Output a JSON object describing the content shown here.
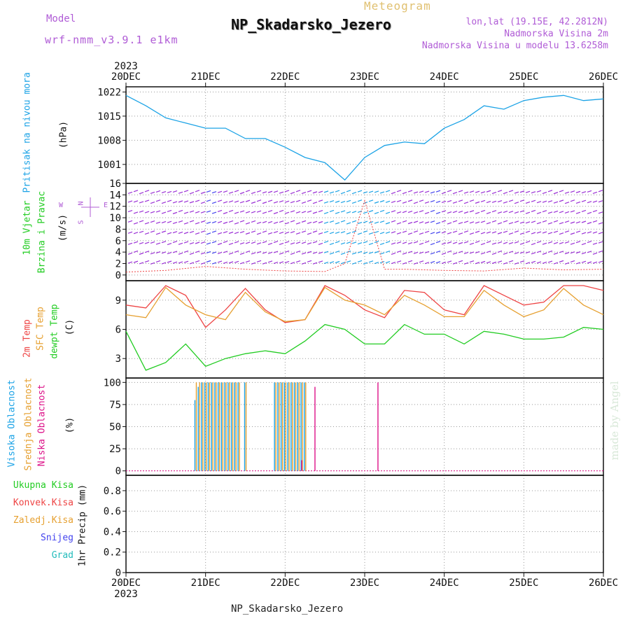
{
  "header": {
    "model_label": "Model",
    "model_value": "wrf-nmm_v3.9.1 e1km",
    "subtitle": "Meteogram",
    "title": "NP_Skadarsko_Jezero",
    "location": "lon,lat (19.15E, 42.2812N)",
    "elevation": "Nadmorska Visina 2m",
    "model_elevation": "Nadmorska Visina u modelu 13.6258m",
    "footer": "NP_Skadarsko_Jezero",
    "watermark": "made by Angel"
  },
  "colors": {
    "purple": "#b05cd6",
    "gold": "#e0c070",
    "pressure": "#1ca3e6",
    "green": "#22cc22",
    "red": "#ee4444",
    "orange": "#e6a030",
    "magenta": "#dd1188",
    "blue": "#4444ee",
    "cyan": "#22bbbb"
  },
  "chart_data": {
    "type": "line",
    "time_axis": {
      "year": "2023",
      "ticks": [
        "20DEC",
        "21DEC",
        "22DEC",
        "23DEC",
        "24DEC",
        "25DEC",
        "26DEC"
      ],
      "start": "2023-12-20T00",
      "end": "2023-12-26T00"
    },
    "panels": [
      {
        "id": "pressure",
        "labels": [
          "Pritisak na nivou mora"
        ],
        "unit": "(hPa)",
        "yticks": [
          1001,
          1008,
          1015,
          1022
        ],
        "ylim": [
          995.5,
          1023.5
        ],
        "series": [
          {
            "name": "Pritisak na nivou mora",
            "x": [
              "12-20 00",
              "12-20 06",
              "12-20 12",
              "12-20 18",
              "12-21 00",
              "12-21 06",
              "12-21 12",
              "12-21 18",
              "12-22 00",
              "12-22 06",
              "12-22 12",
              "12-22 18",
              "12-23 00",
              "12-23 06",
              "12-23 12",
              "12-23 18",
              "12-24 00",
              "12-24 06",
              "12-24 12",
              "12-24 18",
              "12-25 00",
              "12-25 06",
              "12-25 12",
              "12-25 18",
              "12-26 00"
            ],
            "values": [
              1021,
              1018,
              1014.5,
              1013,
              1011.5,
              1011.5,
              1008.5,
              1008.5,
              1006,
              1003,
              1001.5,
              996.5,
              1003,
              1006.5,
              1007.5,
              1007,
              1011.5,
              1014,
              1018,
              1017,
              1019.5,
              1020.5,
              1021,
              1019.5,
              1020
            ]
          }
        ]
      },
      {
        "id": "wind",
        "labels": [
          "10m Vjetar",
          "Brzina i Pravac"
        ],
        "unit": "(m/s)",
        "compass": [
          "N",
          "W",
          "E",
          "S"
        ],
        "yticks": [
          0,
          2,
          4,
          6,
          8,
          10,
          12,
          14,
          16
        ],
        "ylim": [
          -1,
          16
        ],
        "series": [
          {
            "name": "Brzina",
            "x": [
              "12-20 00",
              "12-20 12",
              "12-21 00",
              "12-21 12",
              "12-22 00",
              "12-22 12",
              "12-22 18",
              "12-23 00",
              "12-23 06",
              "12-23 12",
              "12-24 00",
              "12-24 12",
              "12-25 00",
              "12-25 12",
              "12-26 00"
            ],
            "values": [
              0.5,
              0.8,
              1.5,
              1.0,
              0.7,
              0.6,
              2.0,
              13.0,
              1.0,
              1.0,
              0.8,
              0.7,
              1.2,
              0.9,
              1.0
            ]
          }
        ]
      },
      {
        "id": "temperature",
        "labels": [
          "2m Temp",
          "SFC Temp",
          "dewpt Temp"
        ],
        "unit": "(C)",
        "yticks": [
          3,
          6,
          9
        ],
        "ylim": [
          1,
          11
        ],
        "series": [
          {
            "name": "2m Temp",
            "x": [
              "12-20 00",
              "12-20 06",
              "12-20 12",
              "12-20 18",
              "12-21 00",
              "12-21 06",
              "12-21 12",
              "12-21 18",
              "12-22 00",
              "12-22 06",
              "12-22 12",
              "12-22 18",
              "12-23 00",
              "12-23 06",
              "12-23 12",
              "12-23 18",
              "12-24 00",
              "12-24 06",
              "12-24 12",
              "12-24 18",
              "12-25 00",
              "12-25 06",
              "12-25 12",
              "12-25 18",
              "12-26 00"
            ],
            "values": [
              8.5,
              8.2,
              10.5,
              9.5,
              6.2,
              8.0,
              10.2,
              8.0,
              6.7,
              7.0,
              10.5,
              9.5,
              8.0,
              7.2,
              10.0,
              9.8,
              8.0,
              7.5,
              10.5,
              9.5,
              8.5,
              8.8,
              10.5,
              10.5,
              10.0
            ]
          },
          {
            "name": "SFC Temp",
            "x": [
              "12-20 00",
              "12-20 06",
              "12-20 12",
              "12-20 18",
              "12-21 00",
              "12-21 06",
              "12-21 12",
              "12-21 18",
              "12-22 00",
              "12-22 06",
              "12-22 12",
              "12-22 18",
              "12-23 00",
              "12-23 06",
              "12-23 12",
              "12-23 18",
              "12-24 00",
              "12-24 06",
              "12-24 12",
              "12-24 18",
              "12-25 00",
              "12-25 06",
              "12-25 12",
              "12-25 18",
              "12-26 00"
            ],
            "values": [
              7.5,
              7.2,
              10.3,
              8.5,
              7.5,
              7.0,
              9.8,
              7.8,
              6.8,
              7.0,
              10.3,
              9.0,
              8.5,
              7.5,
              9.5,
              8.5,
              7.3,
              7.3,
              10.0,
              8.5,
              7.3,
              8.0,
              10.2,
              8.5,
              7.5
            ]
          },
          {
            "name": "dewpt Temp",
            "x": [
              "12-20 00",
              "12-20 06",
              "12-20 12",
              "12-20 18",
              "12-21 00",
              "12-21 06",
              "12-21 12",
              "12-21 18",
              "12-22 00",
              "12-22 06",
              "12-22 12",
              "12-22 18",
              "12-23 00",
              "12-23 06",
              "12-23 12",
              "12-23 18",
              "12-24 00",
              "12-24 06",
              "12-24 12",
              "12-24 18",
              "12-25 00",
              "12-25 06",
              "12-25 12",
              "12-25 18",
              "12-26 00"
            ],
            "values": [
              5.8,
              1.8,
              2.6,
              4.5,
              2.2,
              3.0,
              3.5,
              3.8,
              3.5,
              4.8,
              6.5,
              6.0,
              4.5,
              4.5,
              6.5,
              5.5,
              5.5,
              4.5,
              5.8,
              5.5,
              5.0,
              5.0,
              5.2,
              6.2,
              6.0
            ]
          }
        ]
      },
      {
        "id": "clouds",
        "labels": [
          "Visoka Oblacnost",
          "Srednja Oblacnost",
          "Niska Oblacnost"
        ],
        "unit": "(%)",
        "yticks": [
          0,
          25,
          50,
          75,
          100
        ],
        "ylim": [
          -5,
          105
        ],
        "series": [
          {
            "name": "Visoka Oblacnost",
            "x": [
              "12-20 21",
              "12-20 22",
              "12-20 23",
              "12-21 00",
              "12-21 01",
              "12-21 02",
              "12-21 03",
              "12-21 04",
              "12-21 05",
              "12-21 06",
              "12-21 07",
              "12-21 08",
              "12-21 09",
              "12-21 10",
              "12-21 12",
              "12-21 21",
              "12-21 22",
              "12-21 23",
              "12-22 00",
              "12-22 01",
              "12-22 02",
              "12-22 03",
              "12-22 04",
              "12-22 05",
              "12-22 06"
            ],
            "values": [
              80,
              95,
              100,
              100,
              100,
              100,
              100,
              100,
              100,
              100,
              100,
              100,
              100,
              100,
              100,
              100,
              100,
              100,
              100,
              100,
              100,
              100,
              100,
              100,
              100
            ]
          },
          {
            "name": "Srednja Oblacnost",
            "x": [
              "12-20 21",
              "12-20 22",
              "12-20 23",
              "12-21 00",
              "12-21 01",
              "12-21 02",
              "12-21 03",
              "12-21 04",
              "12-21 05",
              "12-21 06",
              "12-21 07",
              "12-21 08",
              "12-21 09",
              "12-21 10",
              "12-21 12",
              "12-21 21",
              "12-21 22",
              "12-21 23",
              "12-22 00",
              "12-22 01",
              "12-22 02",
              "12-22 03",
              "12-22 04",
              "12-22 05",
              "12-22 06"
            ],
            "values": [
              100,
              100,
              100,
              100,
              100,
              100,
              100,
              100,
              100,
              100,
              100,
              100,
              100,
              100,
              100,
              100,
              100,
              100,
              100,
              100,
              100,
              100,
              100,
              100,
              100
            ]
          },
          {
            "name": "Niska Oblacnost",
            "x": [
              "12-22 05",
              "12-22 09",
              "12-23 04"
            ],
            "values": [
              12,
              95,
              100
            ]
          }
        ]
      },
      {
        "id": "precip",
        "labels": [
          "Ukupna Kisa",
          "Konvek.Kisa",
          "Zaledj.Kisa",
          "Snijeg",
          "Grad"
        ],
        "unit": "1hr Precip (mm)",
        "yticks": [
          0,
          0.2,
          0.4,
          0.6,
          0.8
        ],
        "ylim": [
          0,
          0.95
        ],
        "series": [
          {
            "name": "Ukupna Kisa",
            "values": []
          },
          {
            "name": "Konvek.Kisa",
            "values": []
          },
          {
            "name": "Zaledj.Kisa",
            "values": []
          },
          {
            "name": "Snijeg",
            "values": []
          },
          {
            "name": "Grad",
            "values": []
          }
        ]
      }
    ]
  }
}
